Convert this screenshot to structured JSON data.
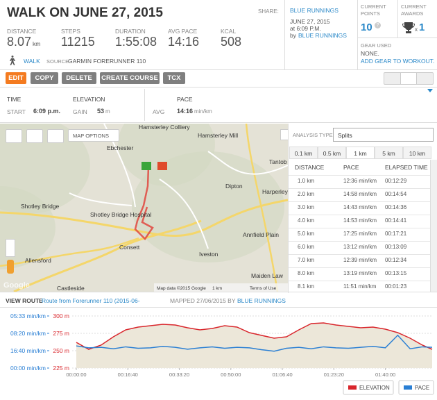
{
  "header": {
    "title": "WALK ON JUNE 27, 2015",
    "share": "SHARE:",
    "user": "BLUE RUNNINGS",
    "date": "JUNE 27, 2015",
    "time": "at 6:09 P.M.",
    "by": "by",
    "by_user": "BLUE RUNNINGS"
  },
  "stats": [
    {
      "label": "DISTANCE",
      "value": "8.07",
      "unit": "km"
    },
    {
      "label": "STEPS",
      "value": "11215"
    },
    {
      "label": "DURATION",
      "value": "1:55:08"
    },
    {
      "label": "AVG PACE",
      "value": "14:16"
    },
    {
      "label": "KCAL",
      "value": "508"
    }
  ],
  "points": {
    "label": "CURRENT POINTS",
    "value": "10",
    "help": "?"
  },
  "awards": {
    "label": "CURRENT AWARDS",
    "x": "x",
    "count": "1"
  },
  "gear": {
    "label": "GEAR USED",
    "value": "NONE.",
    "link": "ADD GEAR TO WORKOUT."
  },
  "activity": {
    "type": "WALK",
    "source_label": "SOURCE",
    "source": "GARMIN FORERUNNER 110"
  },
  "buttons": [
    "EDIT",
    "COPY",
    "DELETE",
    "CREATE COURSE",
    "TCX"
  ],
  "summary": [
    {
      "title": "TIME",
      "label": "START",
      "value": "6:09 p.m."
    },
    {
      "title": "ELEVATION",
      "label": "GAIN",
      "value": "53",
      "unit": "m"
    },
    {
      "title": "PACE",
      "label": "AVG",
      "value": "14:16",
      "unit": "min/km"
    }
  ],
  "map": {
    "options": "MAP OPTIONS",
    "places": [
      "Hamsterley Colliery",
      "Hamsterley Mill",
      "Ebchester",
      "Tantob",
      "Dipton",
      "Harperley",
      "Shotley Bridge",
      "Shotley Bridge Hospital",
      "Consett",
      "Iveston",
      "Annfield Plain",
      "Allensford",
      "Maiden Law",
      "Castleside"
    ],
    "logo": "Google",
    "attribution": "Map data ©2015 Google",
    "scale": "1 km",
    "terms": "Terms of Use"
  },
  "analysis": {
    "label": "ANALYSIS TYPE:",
    "select": "Splits",
    "tabs": [
      "0.1 km",
      "0.5 km",
      "1 km",
      "5 km",
      "10 km"
    ],
    "columns": [
      "DISTANCE",
      "PACE",
      "ELAPSED TIME"
    ],
    "rows": [
      [
        "1.0 km",
        "12:36 min/km",
        "00:12:29"
      ],
      [
        "2.0 km",
        "14:58 min/km",
        "00:14:54"
      ],
      [
        "3.0 km",
        "14:43 min/km",
        "00:14:36"
      ],
      [
        "4.0 km",
        "14:53 min/km",
        "00:14:41"
      ],
      [
        "5.0 km",
        "17:25 min/km",
        "00:17:21"
      ],
      [
        "6.0 km",
        "13:12 min/km",
        "00:13:09"
      ],
      [
        "7.0 km",
        "12:39 min/km",
        "00:12:34"
      ],
      [
        "8.0 km",
        "13:19 min/km",
        "00:13:15"
      ],
      [
        "8.1 km",
        "11:51 min/km",
        "00:01:23"
      ]
    ]
  },
  "route": {
    "label": "VIEW ROUTE",
    "name": "Route from Forerunner 110 (2015-06-",
    "mapped": "MAPPED 27/06/2015 BY",
    "user": "BLUE RUNNINGS"
  },
  "chart_data": {
    "type": "line",
    "x": [
      0,
      240,
      480,
      720,
      960,
      1200,
      1440,
      1680,
      1920,
      2160,
      2400,
      2640,
      2880,
      3120,
      3360,
      3600,
      3840,
      4080,
      4320,
      4560,
      4800,
      5040,
      5280,
      5520,
      5760,
      6000,
      6240,
      6480,
      6720,
      6908
    ],
    "xlim": [
      0,
      6908
    ],
    "xticks": [
      {
        "value": 0,
        "label": "00:00:00"
      },
      {
        "value": 1000,
        "label": "00:16:40"
      },
      {
        "value": 2000,
        "label": "00:33:20"
      },
      {
        "value": 3000,
        "label": "00:50:00"
      },
      {
        "value": 4000,
        "label": "01:06:40"
      },
      {
        "value": 5000,
        "label": "01:23:20"
      },
      {
        "value": 6000,
        "label": "01:40:00"
      }
    ],
    "ylim": [
      225,
      300
    ],
    "yticks": [
      {
        "value": 225,
        "label": "225 m"
      },
      {
        "value": 250,
        "label": "250 m"
      },
      {
        "value": 275,
        "label": "275 m"
      },
      {
        "value": 300,
        "label": "300 m"
      }
    ],
    "y2lim": [
      0,
      10.8
    ],
    "y2ticks": [
      {
        "value": 0,
        "label": "00:00 min/km"
      },
      {
        "value": 3.6,
        "label": "16:40 min/km"
      },
      {
        "value": 7.2,
        "label": "08:20 min/km"
      },
      {
        "value": 10.8,
        "label": "05:33 min/km"
      }
    ],
    "grid": true,
    "series": [
      {
        "name": "ELEVATION",
        "color": "#d9262c",
        "values": [
          262,
          252,
          258,
          270,
          280,
          284,
          286,
          288,
          287,
          283,
          280,
          282,
          286,
          284,
          276,
          272,
          268,
          270,
          280,
          289,
          290,
          287,
          285,
          283,
          284,
          281,
          276,
          268,
          258,
          252
        ]
      },
      {
        "name": "PACE",
        "color": "#2a7fd4",
        "axis": "y2",
        "values": [
          4.6,
          4.2,
          4.3,
          4.0,
          4.4,
          4.1,
          4.2,
          4.5,
          4.3,
          3.9,
          4.2,
          4.4,
          4.1,
          4.3,
          4.2,
          3.8,
          3.5,
          4.1,
          4.3,
          4.0,
          4.4,
          4.2,
          4.1,
          4.3,
          4.5,
          4.2,
          6.8,
          4.0,
          4.4,
          4.3
        ]
      }
    ]
  }
}
